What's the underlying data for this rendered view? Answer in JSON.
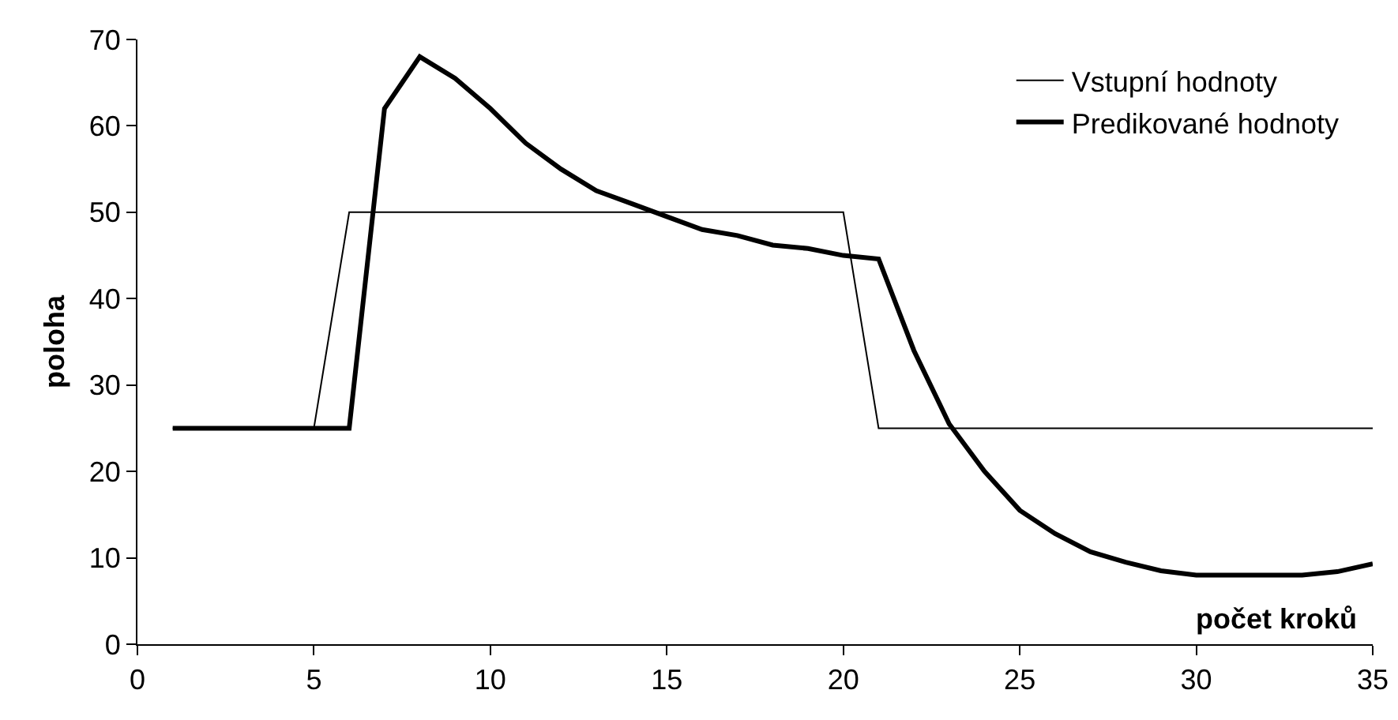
{
  "chart_data": {
    "type": "line",
    "xlabel": "počet kroků",
    "ylabel": "poloha",
    "x": [
      1,
      2,
      3,
      4,
      5,
      6,
      7,
      8,
      9,
      10,
      11,
      12,
      13,
      14,
      15,
      16,
      17,
      18,
      19,
      20,
      21,
      22,
      23,
      24,
      25,
      26,
      27,
      28,
      29,
      30,
      31,
      32,
      33,
      34,
      35
    ],
    "series": [
      {
        "name": "Vstupní hodnoty",
        "color": "#000000",
        "x": [
          1,
          5,
          6,
          20,
          21,
          35
        ],
        "values": [
          25,
          25,
          50,
          50,
          25,
          25
        ]
      },
      {
        "name": "Predikované hodnoty",
        "color": "#000000",
        "values": [
          25,
          25,
          25,
          25,
          25,
          25,
          62,
          68,
          65.5,
          62,
          58,
          55,
          52.5,
          51,
          49.5,
          48,
          47.3,
          46.2,
          45.8,
          45,
          44.6,
          34,
          25.5,
          20,
          15.5,
          12.8,
          10.7,
          9.5,
          8.5,
          8,
          8,
          8,
          8,
          8.4,
          9.3
        ]
      }
    ],
    "xlim": [
      0,
      35
    ],
    "xticks": [
      0,
      5,
      10,
      15,
      20,
      25,
      30,
      35
    ],
    "ylim": [
      0,
      70
    ],
    "yticks": [
      0,
      10,
      20,
      30,
      40,
      50,
      60,
      70
    ],
    "grid": false,
    "legend": "top right",
    "marker": "none",
    "line_style": "solid"
  }
}
